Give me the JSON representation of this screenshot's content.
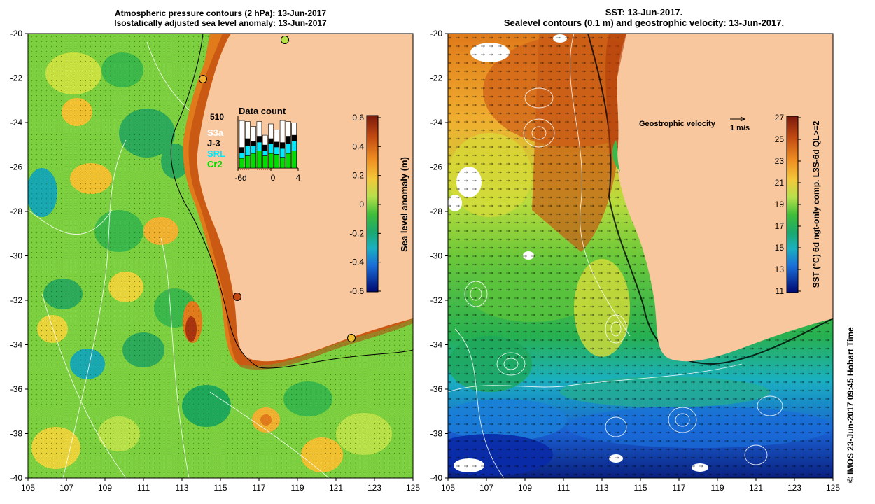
{
  "left_panel": {
    "title_line1": "Atmospheric pressure contours (2 hPa): 13-Jun-2017",
    "title_line2": "Isostatically adjusted sea level anomaly: 13-Jun-2017",
    "y_ticks": [
      "-20",
      "-22",
      "-24",
      "-26",
      "-28",
      "-30",
      "-32",
      "-34",
      "-36",
      "-38",
      "-40"
    ],
    "x_ticks": [
      "105",
      "107",
      "109",
      "111",
      "113",
      "115",
      "117",
      "119",
      "121",
      "123",
      "125"
    ],
    "colorbar": {
      "label": "Sea level anomaly (m)",
      "ticks": [
        "0.6",
        "0.4",
        "0.2",
        "0",
        "-0.2",
        "-0.4",
        "-0.6"
      ],
      "colors": [
        "#7a1a0c",
        "#b8400e",
        "#e07a1a",
        "#f4b13a",
        "#ecd23a",
        "#b8e048",
        "#58c434",
        "#1fa85a",
        "#1aa8b0",
        "#1a6ed8",
        "#0a2aa8",
        "#000870"
      ]
    },
    "data_count": {
      "title": "Data count",
      "max_label": "510",
      "x_ticks": [
        "-6d",
        "0",
        "4"
      ],
      "missions": [
        {
          "name": "S3a",
          "color": "#ffffff"
        },
        {
          "name": "J-3",
          "color": "#000000"
        },
        {
          "name": "SRL",
          "color": "#00e8ff"
        },
        {
          "name": "Cr2",
          "color": "#00dd00"
        }
      ]
    },
    "colors": {
      "land": "#f9c79d",
      "ocean_base": "#7ccf3e"
    }
  },
  "right_panel": {
    "title_line1": "SST: 13-Jun-2017.",
    "title_line2": "Sealevel contours (0.1 m) and geostrophic velocity: 13-Jun-2017.",
    "y_ticks": [
      "-20",
      "-22",
      "-24",
      "-26",
      "-28",
      "-30",
      "-32",
      "-34",
      "-36",
      "-38",
      "-40"
    ],
    "x_ticks": [
      "105",
      "107",
      "109",
      "111",
      "113",
      "115",
      "117",
      "119",
      "121",
      "123",
      "125"
    ],
    "velocity_legend": {
      "label": "Geostrophic velocity",
      "scale": "1 m/s"
    },
    "colorbar": {
      "label": "SST (°C) 6d ngt-only comp. L3S-6d QL>=2",
      "ticks": [
        "27",
        "25",
        "23",
        "21",
        "19",
        "17",
        "15",
        "13",
        "11"
      ],
      "colors": [
        "#7a1a0c",
        "#b8400e",
        "#e07a1a",
        "#f4b13a",
        "#ecd23a",
        "#b8e048",
        "#58c434",
        "#1fa85a",
        "#1aa8b0",
        "#1a6ed8",
        "#0a2aa8",
        "#000870"
      ]
    }
  },
  "credit": "© IMOS 23-Jun-2017 09:45 Hobart Time"
}
